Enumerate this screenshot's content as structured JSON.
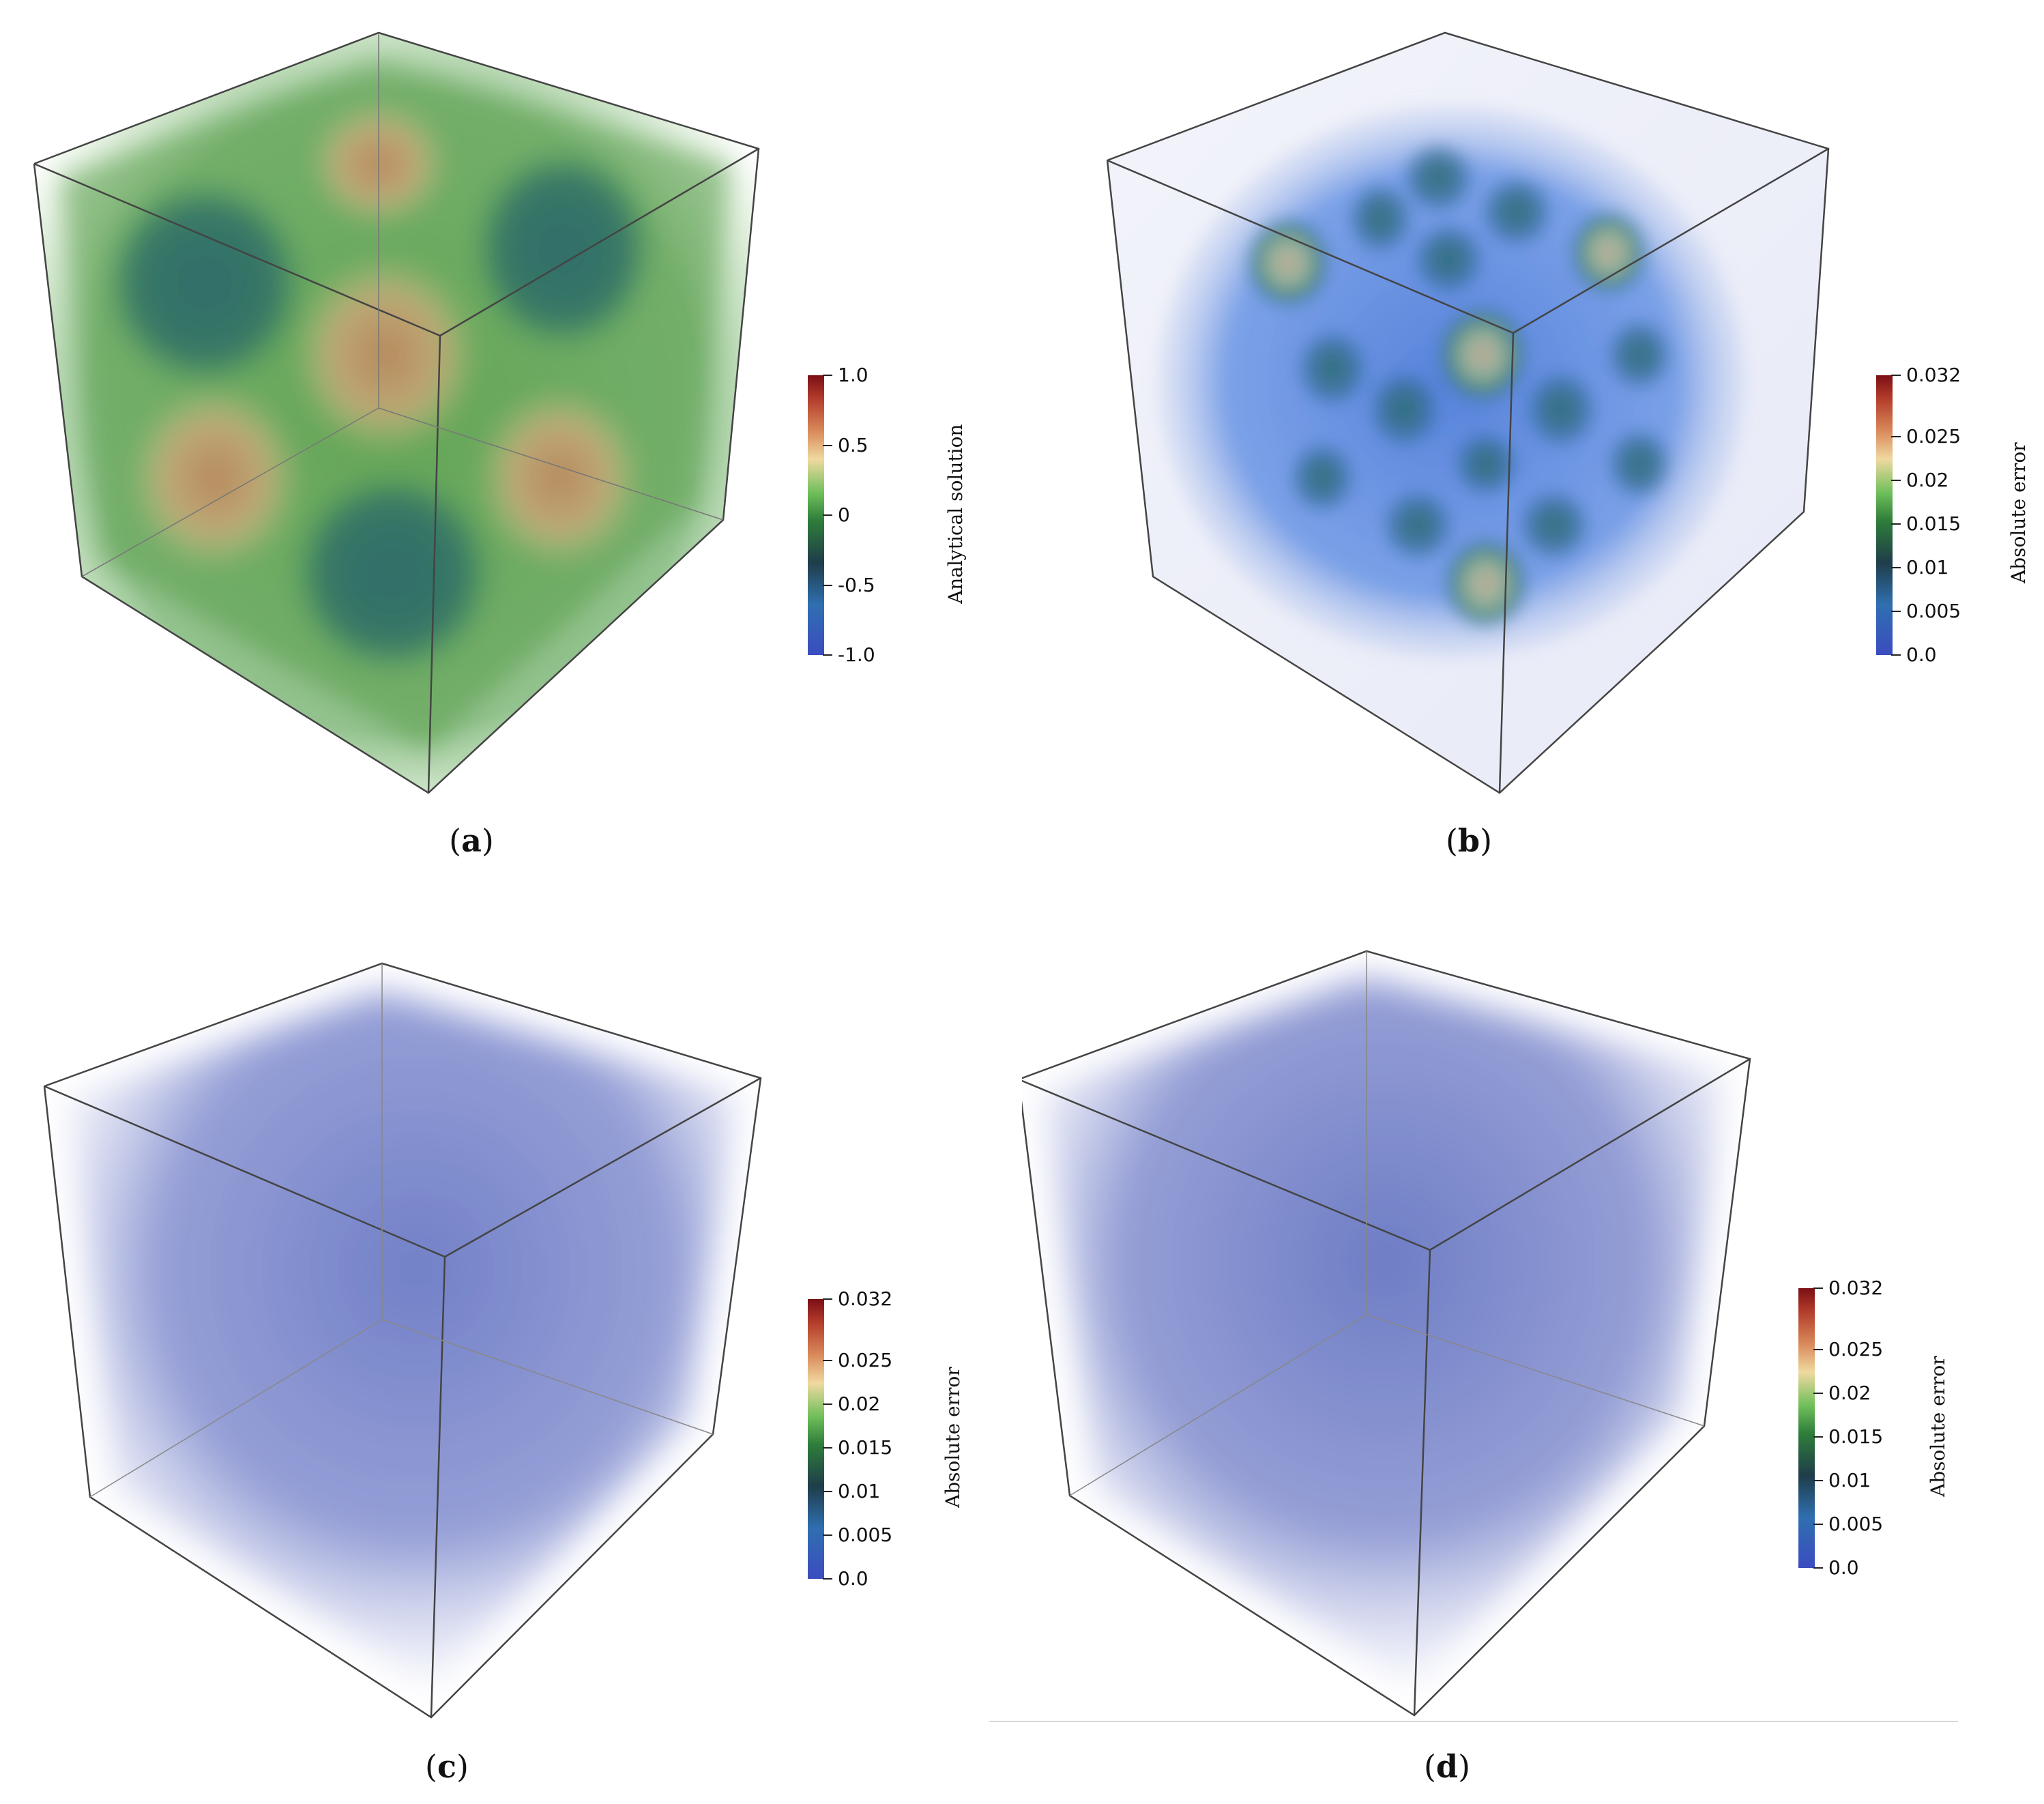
{
  "panels": [
    {
      "id": "a",
      "caption": "a",
      "colorbar": {
        "title": "Analytical solution",
        "ticks": [
          "1.0",
          "0.5",
          "0",
          "-0.5",
          "-1.0"
        ],
        "tick_values": [
          1.0,
          0.5,
          0,
          -0.5,
          -1.0
        ],
        "range": [
          -1.0,
          1.0
        ]
      },
      "volume": "analytical"
    },
    {
      "id": "b",
      "caption": "b",
      "colorbar": {
        "title": "Absolute error",
        "ticks": [
          "0.032",
          "0.025",
          "0.02",
          "0.015",
          "0.01",
          "0.005",
          "0.0"
        ],
        "tick_values": [
          0.032,
          0.025,
          0.02,
          0.015,
          0.01,
          0.005,
          0.0
        ],
        "range": [
          0.0,
          0.032
        ]
      },
      "volume": "error-pattern"
    },
    {
      "id": "c",
      "caption": "c",
      "colorbar": {
        "title": "Absolute error",
        "ticks": [
          "0.032",
          "0.025",
          "0.02",
          "0.015",
          "0.01",
          "0.005",
          "0.0"
        ],
        "tick_values": [
          0.032,
          0.025,
          0.02,
          0.015,
          0.01,
          0.005,
          0.0
        ],
        "range": [
          0.0,
          0.032
        ]
      },
      "volume": "uniform-low"
    },
    {
      "id": "d",
      "caption": "d",
      "colorbar": {
        "title": "Absolute error",
        "ticks": [
          "0.032",
          "0.025",
          "0.02",
          "0.015",
          "0.01",
          "0.005",
          "0.0"
        ],
        "tick_values": [
          0.032,
          0.025,
          0.02,
          0.015,
          0.01,
          0.005,
          0.0
        ],
        "range": [
          0.0,
          0.032
        ]
      },
      "volume": "uniform-low"
    }
  ],
  "colormap": [
    "#3b4cc0",
    "#2f6fb0",
    "#1f3d4a",
    "#2e7d3a",
    "#6fbf5a",
    "#f0d9a0",
    "#d98a5a",
    "#b23a2a",
    "#7a0f14"
  ]
}
